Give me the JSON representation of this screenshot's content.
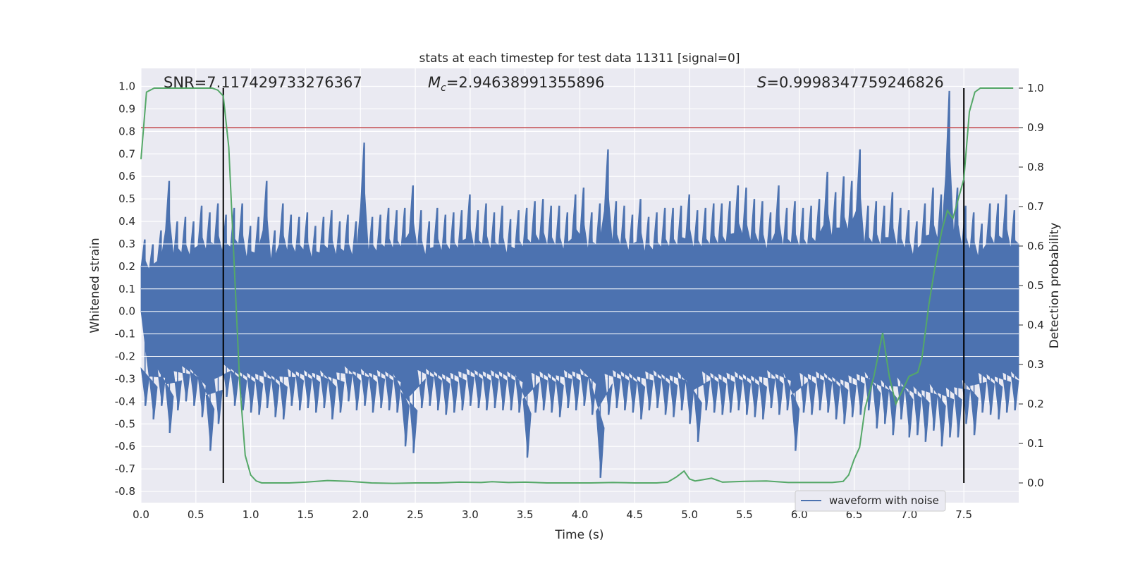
{
  "chart_data": {
    "type": "line",
    "title": "stats at each timestep for test data 11311 [signal=0]",
    "xlabel": "Time (s)",
    "ylabel": "Whitened strain",
    "y2label": "Detection probability",
    "xlim": [
      0.0,
      8.0
    ],
    "ylim": [
      -0.85,
      1.08
    ],
    "y2lim": [
      -0.05,
      1.05
    ],
    "xticks": [
      "0.0",
      "0.5",
      "1.0",
      "1.5",
      "2.0",
      "2.5",
      "3.0",
      "3.5",
      "4.0",
      "4.5",
      "5.0",
      "5.5",
      "6.0",
      "6.5",
      "7.0",
      "7.5"
    ],
    "yticks": [
      "-0.8",
      "-0.7",
      "-0.6",
      "-0.5",
      "-0.4",
      "-0.3",
      "-0.2",
      "-0.1",
      "0.0",
      "0.1",
      "0.2",
      "0.3",
      "0.4",
      "0.5",
      "0.6",
      "0.7",
      "0.8",
      "0.9",
      "1.0"
    ],
    "y2ticks": [
      "0.0",
      "0.1",
      "0.2",
      "0.3",
      "0.4",
      "0.5",
      "0.6",
      "0.7",
      "0.8",
      "0.9",
      "1.0"
    ],
    "grid": true,
    "legend_position": "lower-right",
    "legend": [
      "waveform with noise"
    ],
    "annotations": {
      "snr": "SNR=7.117429733276367",
      "mc_symbol": "M",
      "mc_sub": "c",
      "mc_value": "=2.94638991355896",
      "s_symbol": "S",
      "s_value": "=0.9998347759246826"
    },
    "vertical_lines": [
      0.75,
      7.5
    ],
    "vline_range": [
      0.0,
      1.0
    ],
    "threshold_line": 0.9,
    "strain_series": {
      "name": "waveform with noise",
      "color": "#4c72b0",
      "envelope_max": [
        0.32,
        0.3,
        0.36,
        0.58,
        0.4,
        0.42,
        0.4,
        0.47,
        0.44,
        0.48,
        0.43,
        0.46,
        0.48,
        0.38,
        0.42,
        0.58,
        0.36,
        0.48,
        0.43,
        0.42,
        0.44,
        0.38,
        0.42,
        0.45,
        0.4,
        0.43,
        0.4,
        0.75,
        0.42,
        0.43,
        0.46,
        0.45,
        0.46,
        0.56,
        0.45,
        0.4,
        0.46,
        0.43,
        0.44,
        0.45,
        0.52,
        0.45,
        0.48,
        0.44,
        0.47,
        0.41,
        0.45,
        0.46,
        0.49,
        0.5,
        0.47,
        0.47,
        0.44,
        0.52,
        0.55,
        0.44,
        0.48,
        0.72,
        0.49,
        0.47,
        0.43,
        0.5,
        0.42,
        0.44,
        0.46,
        0.46,
        0.47,
        0.52,
        0.45,
        0.46,
        0.48,
        0.48,
        0.49,
        0.56,
        0.55,
        0.5,
        0.49,
        0.44,
        0.56,
        0.46,
        0.49,
        0.46,
        0.47,
        0.5,
        0.62,
        0.53,
        0.6,
        0.58,
        0.72,
        0.47,
        0.49,
        0.47,
        0.53,
        0.46,
        0.45,
        0.4,
        0.48,
        0.55,
        0.52,
        0.98,
        0.55,
        0.47,
        0.44,
        0.39,
        0.48,
        0.48,
        0.52,
        0.45
      ],
      "envelope_min": [
        -0.42,
        -0.48,
        -0.42,
        -0.54,
        -0.44,
        -0.4,
        -0.42,
        -0.47,
        -0.62,
        -0.5,
        -0.38,
        -0.42,
        -0.44,
        -0.45,
        -0.46,
        -0.43,
        -0.47,
        -0.48,
        -0.42,
        -0.44,
        -0.43,
        -0.45,
        -0.43,
        -0.48,
        -0.45,
        -0.4,
        -0.44,
        -0.42,
        -0.45,
        -0.43,
        -0.44,
        -0.45,
        -0.6,
        -0.63,
        -0.43,
        -0.42,
        -0.44,
        -0.46,
        -0.45,
        -0.44,
        -0.42,
        -0.43,
        -0.44,
        -0.43,
        -0.44,
        -0.44,
        -0.45,
        -0.65,
        -0.45,
        -0.44,
        -0.45,
        -0.47,
        -0.43,
        -0.44,
        -0.42,
        -0.46,
        -0.74,
        -0.46,
        -0.43,
        -0.44,
        -0.45,
        -0.48,
        -0.44,
        -0.43,
        -0.46,
        -0.47,
        -0.44,
        -0.5,
        -0.58,
        -0.44,
        -0.45,
        -0.46,
        -0.45,
        -0.44,
        -0.46,
        -0.47,
        -0.48,
        -0.43,
        -0.46,
        -0.44,
        -0.62,
        -0.45,
        -0.46,
        -0.44,
        -0.45,
        -0.48,
        -0.5,
        -0.47,
        -0.46,
        -0.44,
        -0.52,
        -0.5,
        -0.55,
        -0.48,
        -0.56,
        -0.55,
        -0.58,
        -0.53,
        -0.6,
        -0.56,
        -0.56,
        -0.5,
        -0.55,
        -0.45,
        -0.46,
        -0.48,
        -0.45,
        -0.44
      ]
    },
    "probability_series": {
      "x": [
        0.0,
        0.05,
        0.12,
        0.2,
        0.3,
        0.4,
        0.5,
        0.6,
        0.65,
        0.7,
        0.75,
        0.8,
        0.85,
        0.9,
        0.95,
        1.0,
        1.05,
        1.1,
        1.2,
        1.35,
        1.5,
        1.7,
        1.9,
        2.1,
        2.3,
        2.5,
        2.7,
        2.9,
        3.1,
        3.2,
        3.35,
        3.5,
        3.7,
        3.9,
        4.1,
        4.3,
        4.5,
        4.7,
        4.8,
        4.88,
        4.95,
        5.0,
        5.05,
        5.12,
        5.2,
        5.3,
        5.5,
        5.7,
        5.9,
        6.1,
        6.3,
        6.4,
        6.45,
        6.5,
        6.55,
        6.6,
        6.68,
        6.76,
        6.82,
        6.88,
        6.95,
        7.0,
        7.08,
        7.12,
        7.18,
        7.25,
        7.3,
        7.35,
        7.4,
        7.45,
        7.5,
        7.55,
        7.6,
        7.65,
        7.7,
        7.8,
        7.95
      ],
      "y": [
        0.82,
        0.99,
        1.0,
        1.0,
        1.0,
        1.0,
        1.0,
        1.0,
        1.0,
        0.995,
        0.98,
        0.85,
        0.55,
        0.25,
        0.07,
        0.02,
        0.005,
        0.0,
        0.0,
        0.0,
        0.002,
        0.006,
        0.004,
        0.0,
        -0.001,
        0.0,
        0.0,
        0.002,
        0.001,
        0.003,
        0.001,
        0.002,
        0.0,
        0.0,
        0.0,
        0.001,
        0.0,
        0.0,
        0.002,
        0.015,
        0.03,
        0.01,
        0.005,
        0.008,
        0.012,
        0.002,
        0.004,
        0.005,
        0.001,
        0.001,
        0.001,
        0.004,
        0.02,
        0.06,
        0.09,
        0.19,
        0.27,
        0.38,
        0.27,
        0.2,
        0.24,
        0.27,
        0.28,
        0.32,
        0.45,
        0.57,
        0.64,
        0.69,
        0.67,
        0.72,
        0.77,
        0.94,
        0.99,
        1.0,
        1.0,
        1.0,
        1.0
      ],
      "color": "#55a868"
    },
    "colors": {
      "plot_bg": "#eaeaf2",
      "grid": "#ffffff",
      "strain": "#4c72b0",
      "probability": "#55a868",
      "threshold": "#c44e52",
      "vline": "#000000"
    }
  }
}
